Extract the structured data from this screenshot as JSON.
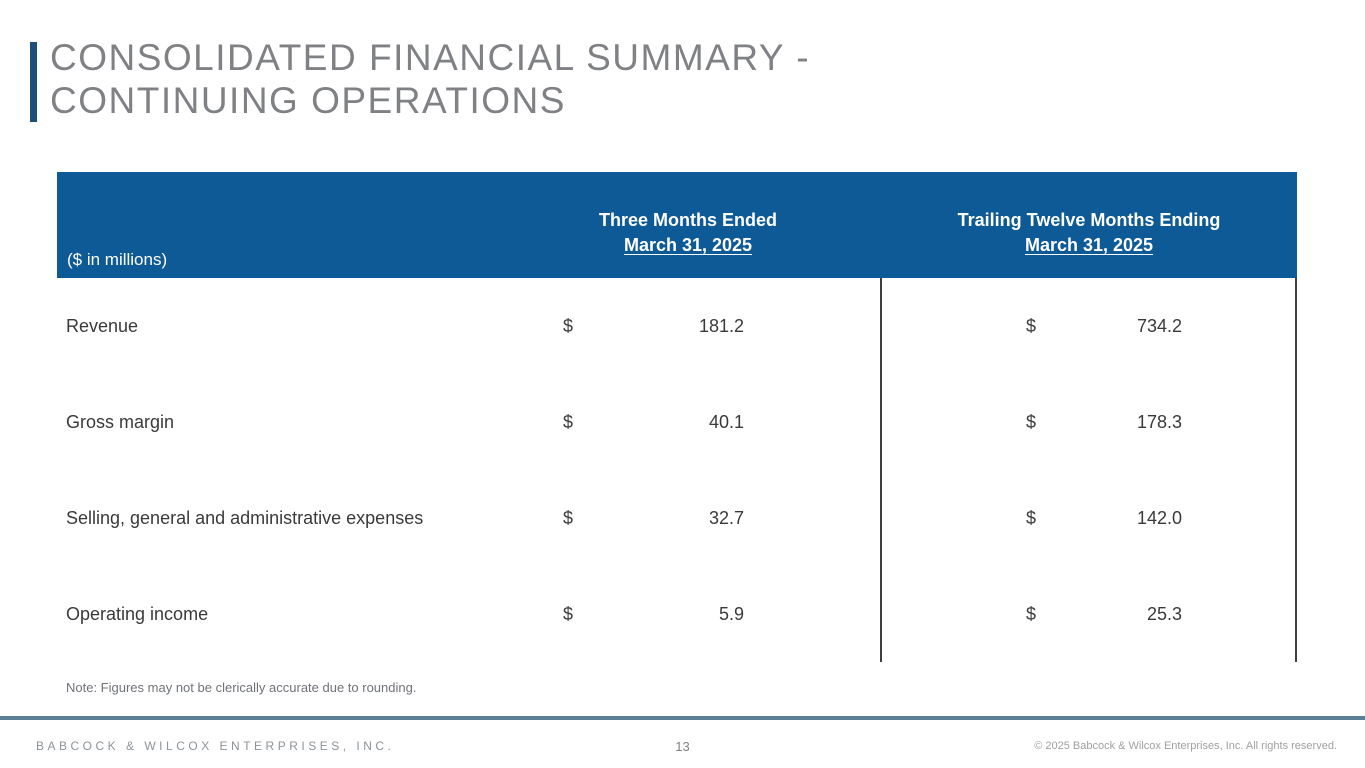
{
  "slide": {
    "title_line1": "CONSOLIDATED FINANCIAL SUMMARY -",
    "title_line2": "CONTINUING OPERATIONS"
  },
  "table": {
    "unit_label": "($ in millions)",
    "currency": "$",
    "column_headers": [
      {
        "line1": "Three Months Ended",
        "line2": "March 31, 2025"
      },
      {
        "line1": "Trailing Twelve Months Ending",
        "line2": "March 31, 2025"
      }
    ],
    "rows": [
      {
        "label": "Revenue",
        "three_months": "181.2",
        "trailing_twelve": "734.2"
      },
      {
        "label": "Gross margin",
        "three_months": "40.1",
        "trailing_twelve": "178.3"
      },
      {
        "label": "Selling, general and administrative expenses",
        "three_months": "32.7",
        "trailing_twelve": "142.0"
      },
      {
        "label": "Operating income",
        "three_months": "5.9",
        "trailing_twelve": "25.3"
      }
    ]
  },
  "note": "Note: Figures may not be clerically accurate due to rounding.",
  "footer": {
    "company": "BABCOCK & WILCOX ENTERPRISES, INC.",
    "page_number": "13",
    "copyright": "© 2025 Babcock & Wilcox Enterprises, Inc. All rights reserved."
  },
  "colors": {
    "header_blue": "#0D5A96",
    "title_accent_blue": "#1F4E79",
    "footer_line_blue": "#5B7E95",
    "title_gray": "#7F8184",
    "body_text": "#3A3A3A"
  }
}
